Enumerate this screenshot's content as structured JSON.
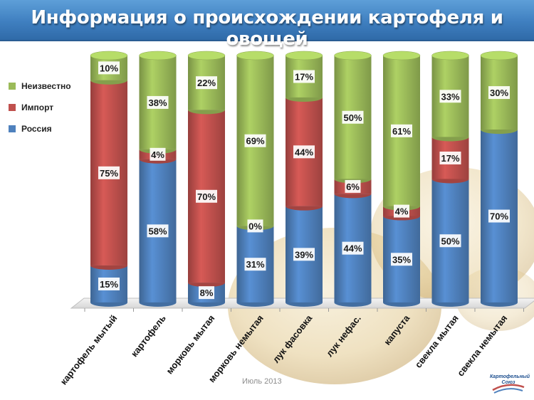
{
  "title": "Информация о происхождении картофеля и овощей",
  "footer": {
    "date": "Июль 2013"
  },
  "logo": {
    "text": "Картофельный Союз"
  },
  "colors": {
    "title_bar": "#3f7fc0",
    "russia": "#4f81bd",
    "import": "#c0504d",
    "unknown": "#9bbb59"
  },
  "legend": [
    {
      "label": "Неизвестно",
      "color": "#9bbb59"
    },
    {
      "label": "Импорт",
      "color": "#c0504d"
    },
    {
      "label": "Россия",
      "color": "#4f81bd"
    }
  ],
  "chart_data": {
    "type": "bar",
    "stacked": true,
    "percent": true,
    "style": "3d-cylinder",
    "legend_position": "left",
    "grid": false,
    "ylim": [
      0,
      100
    ],
    "categories": [
      "картофель мытый",
      "картофель",
      "морковь мытая",
      "морковь немытая",
      "лук фасовка",
      "лук нефас.",
      "капуста",
      "свекла мытая",
      "свекла немытая"
    ],
    "series": [
      {
        "name": "Россия",
        "color": "#4f81bd",
        "values": [
          15,
          58,
          8,
          31,
          39,
          44,
          35,
          50,
          70
        ]
      },
      {
        "name": "Импорт",
        "color": "#c0504d",
        "values": [
          75,
          4,
          70,
          0,
          44,
          6,
          4,
          17,
          null
        ]
      },
      {
        "name": "Неизвестно",
        "color": "#9bbb59",
        "values": [
          10,
          38,
          22,
          69,
          17,
          50,
          61,
          33,
          30
        ]
      }
    ],
    "data_labels": [
      [
        "15%",
        "58%",
        "8%",
        "31%",
        "39%",
        "44%",
        "35%",
        "50%",
        "70%"
      ],
      [
        "75%",
        "4%",
        "70%",
        "0%",
        "44%",
        "6%",
        "4%",
        "17%",
        ""
      ],
      [
        "10%",
        "38%",
        "22%",
        "69%",
        "17%",
        "50%",
        "61%",
        "33%",
        "30%"
      ]
    ]
  }
}
